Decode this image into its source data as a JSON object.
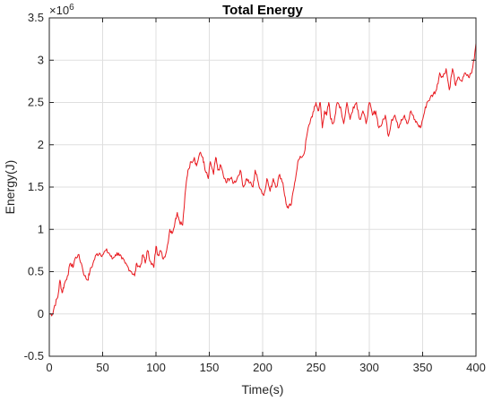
{
  "chart_data": {
    "type": "line",
    "title": "Total Energy",
    "xlabel": "Time(s)",
    "ylabel": "Energy(J)",
    "y_exponent_label": "×10",
    "y_exponent_power": "6",
    "xlim": [
      0,
      400
    ],
    "ylim": [
      -0.5,
      3.5
    ],
    "x_ticks": [
      "0",
      "50",
      "100",
      "150",
      "200",
      "250",
      "300",
      "350",
      "400"
    ],
    "y_ticks": [
      "-0.5",
      "0",
      "0.5",
      "1",
      "1.5",
      "2",
      "2.5",
      "3",
      "3.5"
    ],
    "grid": true,
    "series": [
      {
        "color": "#e8191f",
        "x": [
          0,
          3,
          5,
          8,
          10,
          12,
          14,
          17,
          20,
          22,
          24,
          27,
          30,
          33,
          36,
          38,
          41,
          44,
          47,
          50,
          53,
          56,
          59,
          62,
          65,
          68,
          71,
          74,
          77,
          80,
          82,
          85,
          88,
          90,
          92,
          95,
          98,
          100,
          102,
          104,
          107,
          110,
          113,
          115,
          118,
          120,
          122,
          125,
          128,
          130,
          133,
          136,
          138,
          141,
          144,
          146,
          149,
          151,
          154,
          156,
          158,
          161,
          164,
          166,
          168,
          170,
          173,
          176,
          179,
          182,
          185,
          188,
          191,
          193,
          196,
          199,
          201,
          204,
          207,
          210,
          213,
          216,
          219,
          222,
          224,
          227,
          230,
          233,
          236,
          239,
          242,
          245,
          248,
          250,
          252,
          254,
          256,
          258,
          260,
          262,
          264,
          266,
          268,
          270,
          273,
          276,
          279,
          282,
          285,
          288,
          291,
          294,
          297,
          300,
          303,
          306,
          309,
          312,
          315,
          318,
          321,
          324,
          327,
          330,
          333,
          336,
          339,
          342,
          345,
          348,
          351,
          354,
          357,
          360,
          363,
          366,
          369,
          372,
          375,
          378,
          381,
          384,
          387,
          390,
          393,
          396,
          398,
          400
        ],
        "y": [
          0.0,
          0.0,
          0.1,
          0.2,
          0.4,
          0.25,
          0.35,
          0.45,
          0.6,
          0.55,
          0.65,
          0.7,
          0.6,
          0.45,
          0.4,
          0.5,
          0.6,
          0.7,
          0.72,
          0.7,
          0.75,
          0.72,
          0.65,
          0.7,
          0.72,
          0.65,
          0.6,
          0.55,
          0.5,
          0.45,
          0.6,
          0.55,
          0.7,
          0.6,
          0.75,
          0.62,
          0.55,
          0.8,
          0.7,
          0.75,
          0.65,
          0.75,
          1.0,
          0.95,
          1.1,
          1.2,
          1.1,
          1.05,
          1.5,
          1.7,
          1.8,
          1.85,
          1.75,
          1.9,
          1.85,
          1.7,
          1.6,
          1.8,
          1.65,
          1.85,
          1.7,
          1.75,
          1.6,
          1.55,
          1.6,
          1.6,
          1.55,
          1.6,
          1.7,
          1.5,
          1.6,
          1.55,
          1.5,
          1.7,
          1.55,
          1.45,
          1.4,
          1.6,
          1.45,
          1.6,
          1.5,
          1.65,
          1.55,
          1.3,
          1.25,
          1.3,
          1.55,
          1.8,
          1.85,
          1.9,
          2.15,
          2.3,
          2.4,
          2.5,
          2.4,
          2.5,
          2.2,
          2.4,
          2.35,
          2.5,
          2.3,
          2.25,
          2.35,
          2.5,
          2.45,
          2.25,
          2.5,
          2.3,
          2.45,
          2.5,
          2.3,
          2.4,
          2.25,
          2.5,
          2.35,
          2.4,
          2.2,
          2.25,
          2.35,
          2.1,
          2.3,
          2.35,
          2.2,
          2.3,
          2.35,
          2.25,
          2.4,
          2.3,
          2.25,
          2.2,
          2.35,
          2.5,
          2.55,
          2.6,
          2.65,
          2.85,
          2.8,
          2.9,
          2.65,
          2.9,
          2.7,
          2.8,
          2.75,
          2.85,
          2.8,
          2.85,
          3.0,
          3.2
        ]
      }
    ]
  }
}
